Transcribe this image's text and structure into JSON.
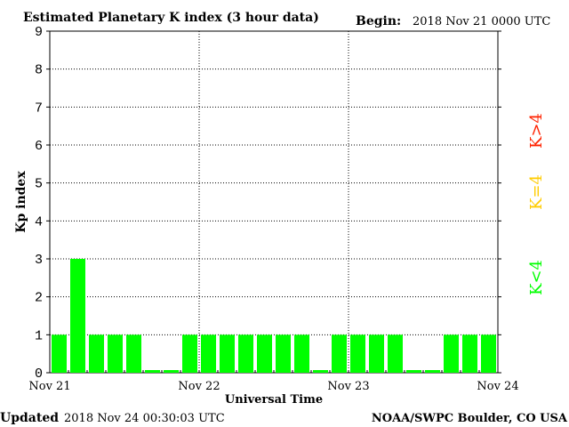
{
  "header": {
    "title": "Estimated Planetary K index (3 hour data)",
    "begin_label": "Begin:",
    "begin_value": "2018 Nov 21 0000 UTC"
  },
  "footer": {
    "updated_label": "Updated",
    "updated_value": "2018 Nov 24 00:30:03 UTC",
    "credit": "NOAA/SWPC Boulder, CO USA"
  },
  "legend": {
    "items": [
      {
        "label": "K<4",
        "color": "#00ff00"
      },
      {
        "label": "K=4",
        "color": "#ffcc00"
      },
      {
        "label": "K>4",
        "color": "#ff2200"
      }
    ]
  },
  "colors": {
    "bar": "#00ff00",
    "axis": "#000000",
    "grid": "#000000"
  },
  "chart_data": {
    "type": "bar",
    "title": "Estimated Planetary K index (3 hour data)",
    "xlabel": "Universal Time",
    "ylabel": "Kp index",
    "ylim": [
      0,
      9
    ],
    "yticks": [
      0,
      1,
      2,
      3,
      4,
      5,
      6,
      7,
      8,
      9
    ],
    "x_tick_labels": [
      "Nov 21",
      "Nov 22",
      "Nov 23",
      "Nov 24"
    ],
    "grid": true,
    "legend_placement": "right",
    "values": [
      1,
      3,
      1,
      1,
      1,
      0,
      0,
      1,
      1,
      1,
      1,
      1,
      1,
      1,
      0,
      1,
      1,
      1,
      1,
      0,
      0,
      1,
      1,
      1
    ]
  }
}
